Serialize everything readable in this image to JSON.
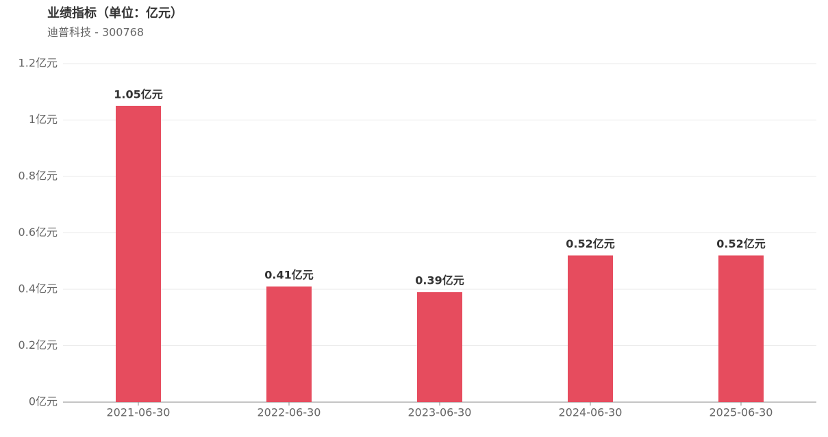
{
  "chart_data": {
    "type": "bar",
    "title": "业绩指标（单位：亿元）",
    "subtitle": "迪普科技 - 300768",
    "categories": [
      "2021-06-30",
      "2022-06-30",
      "2023-06-30",
      "2024-06-30",
      "2025-06-30"
    ],
    "values": [
      1.05,
      0.41,
      0.39,
      0.52,
      0.52
    ],
    "value_labels": [
      "1.05亿元",
      "0.41亿元",
      "0.39亿元",
      "0.52亿元",
      "0.52亿元"
    ],
    "color": "#e64c5e",
    "ylim": [
      0,
      1.2
    ],
    "yticks": [
      {
        "value": 0,
        "label": "0亿元"
      },
      {
        "value": 0.2,
        "label": "0.2亿元"
      },
      {
        "value": 0.4,
        "label": "0.4亿元"
      },
      {
        "value": 0.6,
        "label": "0.6亿元"
      },
      {
        "value": 0.8,
        "label": "0.8亿元"
      },
      {
        "value": 1,
        "label": "1亿元"
      },
      {
        "value": 1.2,
        "label": "1.2亿元"
      }
    ],
    "grid": true
  }
}
